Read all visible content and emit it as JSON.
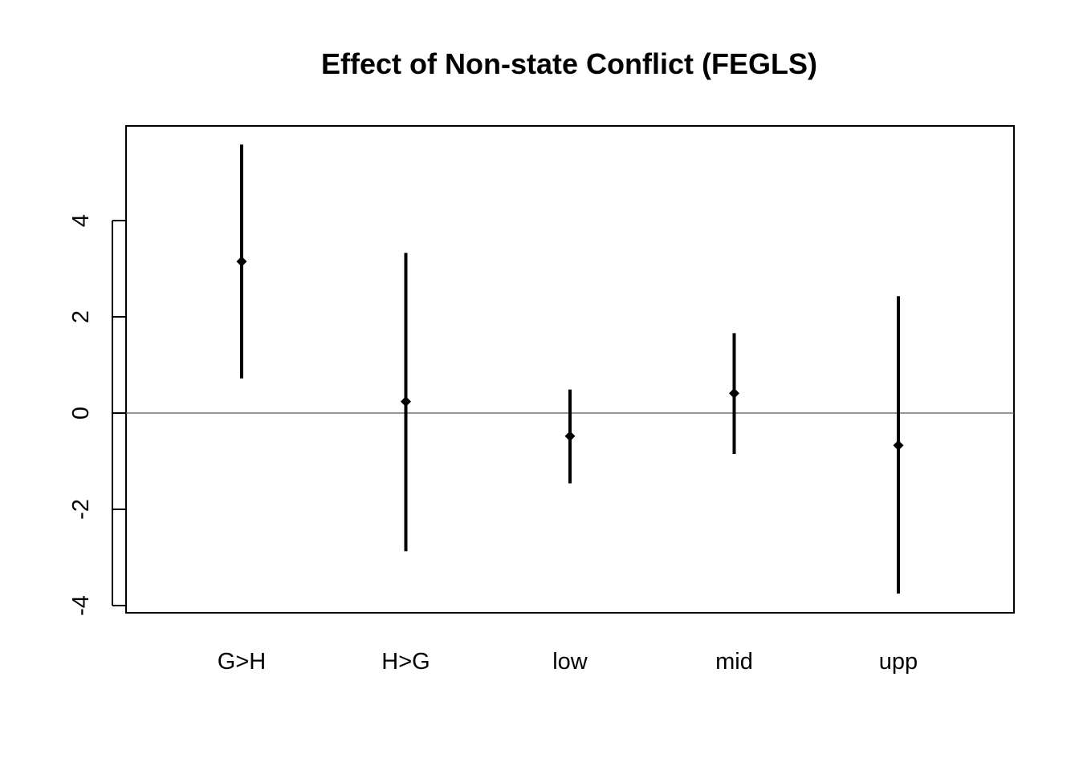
{
  "chart_data": {
    "type": "scatter",
    "title": "Effect of Non-state Conflict (FEGLS)",
    "xlabel": "",
    "ylabel": "",
    "categories": [
      "G>H",
      "H>G",
      "low",
      "mid",
      "upp"
    ],
    "estimates": [
      3.15,
      0.24,
      -0.48,
      0.41,
      -0.67
    ],
    "lower": [
      0.72,
      -2.87,
      -1.46,
      -0.85,
      -3.75
    ],
    "upper": [
      5.58,
      3.33,
      0.49,
      1.66,
      2.43
    ],
    "yticks": [
      -4,
      -2,
      0,
      2,
      4
    ],
    "ylim": [
      -4.1,
      6.0
    ],
    "reference_line": 0,
    "grid": false,
    "colors": {
      "marks": "#000000",
      "reference_line": "#555555",
      "frame": "#000000"
    }
  }
}
